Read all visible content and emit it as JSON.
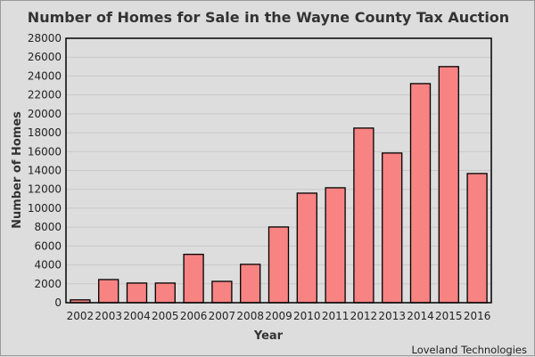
{
  "chart_data": {
    "type": "bar",
    "title": "Number of Homes for Sale in the Wayne County Tax Auction",
    "xlabel": "Year",
    "ylabel": "Number of Homes",
    "credit": "Loveland Technologies",
    "categories": [
      "2002",
      "2003",
      "2004",
      "2005",
      "2006",
      "2007",
      "2008",
      "2009",
      "2010",
      "2011",
      "2012",
      "2013",
      "2014",
      "2015",
      "2016"
    ],
    "values": [
      300,
      2450,
      2080,
      2080,
      5120,
      2260,
      4060,
      8020,
      11600,
      12170,
      18490,
      15850,
      23200,
      25000,
      13680
    ],
    "ylim": [
      0,
      28000
    ],
    "yticks": [
      0,
      2000,
      4000,
      6000,
      8000,
      10000,
      12000,
      14000,
      16000,
      18000,
      20000,
      22000,
      24000,
      26000,
      28000
    ],
    "grid": true,
    "colors": {
      "bar": "#f78383",
      "bar_stroke": "#000000",
      "grid": "#c8c8c8",
      "background": "#dddddd"
    }
  }
}
